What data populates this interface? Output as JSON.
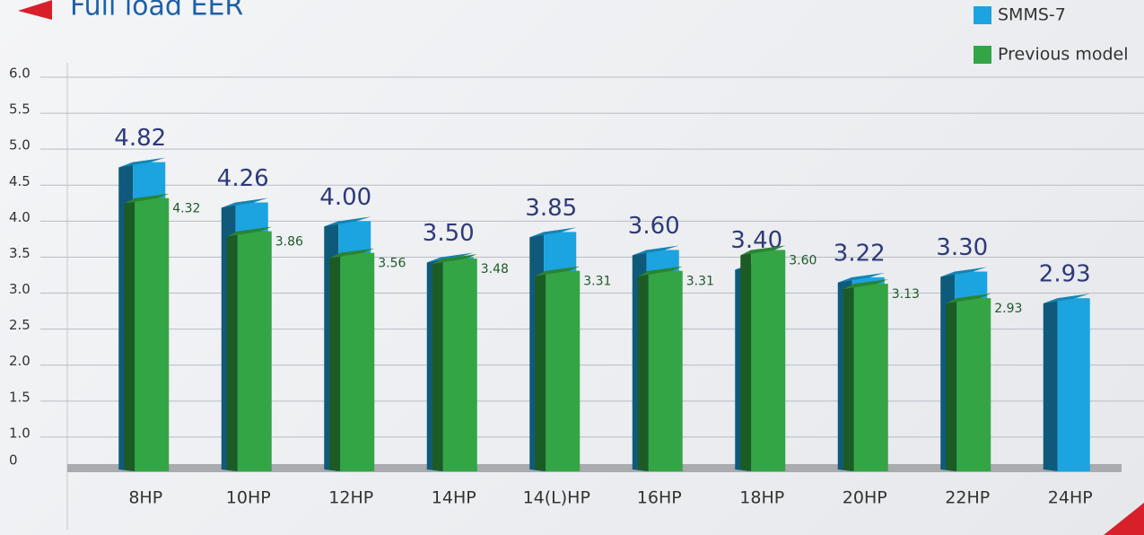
{
  "chart_data": {
    "type": "bar",
    "title": "Full load EER",
    "categories": [
      "8HP",
      "10HP",
      "12HP",
      "14HP",
      "14(L)HP",
      "16HP",
      "18HP",
      "20HP",
      "22HP",
      "24HP"
    ],
    "series": [
      {
        "name": "SMMS-7",
        "color": "#1ba4e0",
        "values": [
          4.82,
          4.26,
          4.0,
          3.5,
          3.85,
          3.6,
          3.4,
          3.22,
          3.3,
          2.93
        ],
        "value_labels": [
          "4.82",
          "4.26",
          "4.00",
          "3.50",
          "3.85",
          "3.60",
          "3.40",
          "3.22",
          "3.30",
          "2.93"
        ]
      },
      {
        "name": "Previous model",
        "color": "#34a544",
        "values": [
          4.32,
          3.86,
          3.56,
          3.48,
          3.31,
          3.31,
          3.6,
          3.13,
          2.93,
          null
        ],
        "value_labels": [
          "4.32",
          "3.86",
          "3.56",
          "3.48",
          "3.31",
          "3.31",
          "3.60",
          "3.13",
          "2.93",
          null
        ]
      }
    ],
    "ylim": [
      0.625,
      6.0
    ],
    "yticks": [
      0,
      {
        "value": 1,
        "label": "1.0"
      },
      1.5,
      {
        "value": 2,
        "label": "2.0"
      },
      2.5,
      {
        "value": 3,
        "label": "3.0"
      },
      3.5,
      {
        "value": 4,
        "label": "4.0"
      },
      4.5,
      {
        "value": 5,
        "label": "5.0"
      },
      5.5,
      {
        "value": 6,
        "label": "6.0"
      }
    ],
    "grid": true,
    "legend": "top-right"
  }
}
